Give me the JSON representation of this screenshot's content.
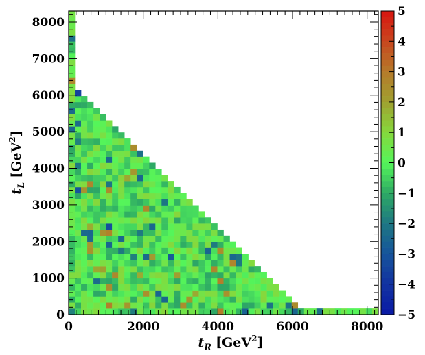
{
  "chart_data": {
    "type": "heatmap",
    "title": "",
    "xlabel": "t_R [GeV^2]",
    "ylabel": "t_L [GeV^2]",
    "xlabel_parts": {
      "var": "t",
      "sub": "R",
      "unit": "[GeV",
      "exp": "2",
      "close": "]"
    },
    "ylabel_parts": {
      "var": "t",
      "sub": "L",
      "unit": "[GeV",
      "exp": "2",
      "close": "]"
    },
    "xlim": [
      0,
      8300
    ],
    "ylim": [
      0,
      8300
    ],
    "xticks": [
      0,
      2000,
      4000,
      6000,
      8000
    ],
    "yticks": [
      0,
      1000,
      2000,
      3000,
      4000,
      5000,
      6000,
      7000,
      8000
    ],
    "xtick_labels": [
      "0",
      "2000",
      "4000",
      "6000",
      "8000"
    ],
    "ytick_labels": [
      "0",
      "1000",
      "2000",
      "3000",
      "4000",
      "5000",
      "6000",
      "7000",
      "8000"
    ],
    "bins": 50,
    "bin_width": 166,
    "populated_region": "t_L + t_R <= 6200 (triangle), plus thin strips along each axis up to 8300",
    "cells_typical_value_range": [
      -1,
      1
    ],
    "notable_cells": [
      {
        "t_R": 250,
        "t_L": 6050,
        "value": -3.5
      },
      {
        "t_R": 1080,
        "t_L": 2400,
        "value": -3.2
      },
      {
        "t_R": 250,
        "t_L": 3400,
        "value": -3.0
      },
      {
        "t_R": 2700,
        "t_L": 1580,
        "value": -2.8
      },
      {
        "t_R": 4650,
        "t_L": 80,
        "value": -2.6
      },
      {
        "t_R": 580,
        "t_L": 2080,
        "value": -2.4
      }
    ],
    "colorbar": {
      "range": [
        -5,
        5
      ],
      "ticks": [
        5,
        4,
        3,
        2,
        1,
        0,
        -1,
        -2,
        -3,
        -4,
        -5
      ],
      "tick_labels": [
        "5",
        "4",
        "3",
        "2",
        "1",
        "0",
        "−1",
        "−2",
        "−3",
        "−4",
        "−5"
      ],
      "colormap": "ROOT kBird-like: blue (-5) to green (0) to red (+5)",
      "colors": {
        "minus5": "#0a1aa6",
        "minus3": "#16549c",
        "minus1": "#2ec067",
        "zero": "#55f55a",
        "plus1": "#86d83c",
        "plus3": "#b57a2a",
        "plus5": "#d81510"
      }
    },
    "grid": false,
    "legend": "none"
  }
}
